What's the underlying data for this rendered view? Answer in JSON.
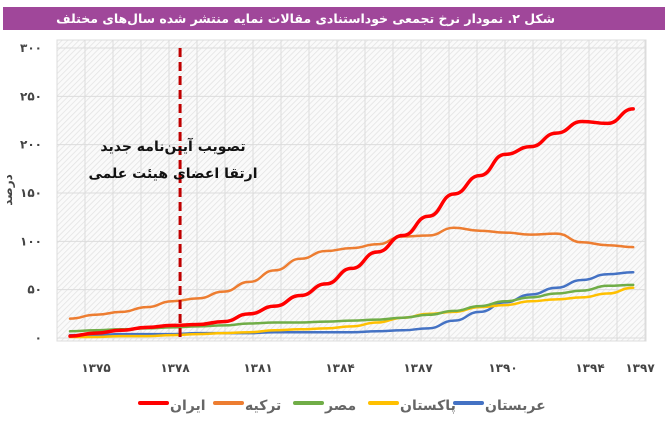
{
  "header": {
    "title": "شکل ۲. نمودار نرخ تجمعی خوداستنادی مقالات نمایه منتشر شده سال‌های مختلف"
  },
  "chart_data": {
    "type": "line",
    "title": "شکل ۲. نمودار نرخ تجمعی خوداستنادی مقالات نمایه منتشر شده سال‌های مختلف",
    "ylabel": "درصد",
    "xlabel": "",
    "ylim": [
      0,
      300
    ],
    "yticks": [
      0,
      50,
      100,
      150,
      200,
      250,
      300
    ],
    "ytick_labels": [
      "۰",
      "۵۰",
      "۱۰۰",
      "۱۵۰",
      "۲۰۰",
      "۲۵۰",
      "۳۰۰"
    ],
    "x": [
      1375,
      1376,
      1377,
      1378,
      1379,
      1380,
      1381,
      1382,
      1383,
      1384,
      1385,
      1386,
      1387,
      1388,
      1389,
      1390,
      1391,
      1392,
      1393,
      1394,
      1395,
      1396,
      1397
    ],
    "xtick_labels": [
      "۱۳۷۵",
      "۱۳۷۸",
      "۱۳۸۱",
      "۱۳۸۴",
      "۱۳۸۷",
      "۱۳۹۰",
      "۱۳۹۴",
      "۱۳۹۷"
    ],
    "grid": true,
    "legend_position": "bottom",
    "series": [
      {
        "name": "ایران",
        "color": "#ff0000",
        "values": [
          2,
          5,
          8,
          11,
          13,
          14,
          17,
          25,
          33,
          44,
          56,
          72,
          89,
          106,
          126,
          149,
          168,
          190,
          198,
          212,
          224,
          222,
          237
        ]
      },
      {
        "name": "ترکیه",
        "color": "#ed7d31",
        "values": [
          20,
          24,
          27,
          32,
          38,
          41,
          48,
          58,
          70,
          82,
          90,
          93,
          97,
          105,
          106,
          114,
          111,
          109,
          107,
          108,
          99,
          96,
          94
        ]
      },
      {
        "name": "مصر",
        "color": "#70ad47",
        "values": [
          7,
          8,
          9,
          10,
          11,
          12,
          13,
          15,
          16,
          16,
          17,
          18,
          19,
          21,
          24,
          28,
          33,
          38,
          42,
          46,
          49,
          54,
          55
        ]
      },
      {
        "name": "پاکستان",
        "color": "#ffc000",
        "values": [
          1,
          1,
          2,
          2,
          3,
          4,
          5,
          6,
          8,
          9,
          10,
          12,
          16,
          21,
          25,
          27,
          32,
          34,
          38,
          40,
          42,
          46,
          52
        ]
      },
      {
        "name": "عربستان",
        "color": "#4472c4",
        "values": [
          3,
          3,
          4,
          4,
          4,
          5,
          5,
          5,
          6,
          6,
          6,
          6,
          7,
          8,
          10,
          18,
          27,
          37,
          45,
          52,
          60,
          66,
          68
        ]
      }
    ],
    "annotation": {
      "line1": "تصویب آیین‌نامه جدید",
      "line2": "ارتقا اعضای هیئت علمی",
      "at_year": 1379.3,
      "line_color": "#c00000"
    }
  }
}
